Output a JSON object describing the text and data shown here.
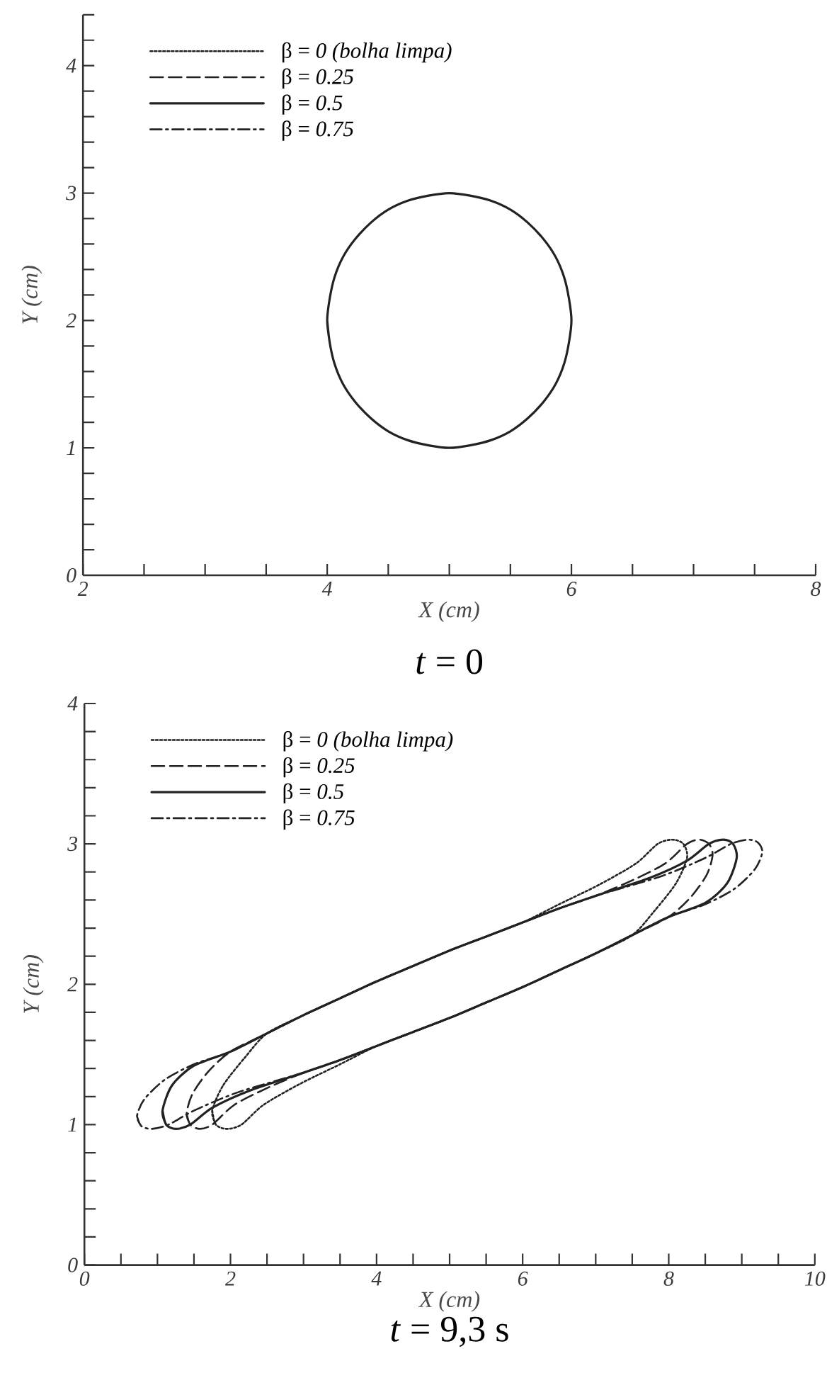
{
  "chart_data": [
    {
      "type": "line",
      "xlabel": "X (cm)",
      "ylabel": "Y (cm)",
      "annotations": [
        "*t* = 0"
      ],
      "legend": "top left",
      "xlim": [
        2,
        8
      ],
      "ylim": [
        0,
        4.4
      ],
      "xticks": [
        2,
        {
          "value": 2.5,
          "label": null
        },
        {
          "value": 3,
          "label": null
        },
        {
          "value": 3.5,
          "label": null
        },
        4,
        {
          "value": 4.5,
          "label": null
        },
        {
          "value": 5,
          "label": null
        },
        {
          "value": 5.5,
          "label": null
        },
        6,
        {
          "value": 6.5,
          "label": null
        },
        {
          "value": 7,
          "label": null
        },
        {
          "value": 7.5,
          "label": null
        },
        8
      ],
      "yticks": [
        0,
        {
          "value": 0.2,
          "label": null
        },
        {
          "value": 0.4,
          "label": null
        },
        {
          "value": 0.6,
          "label": null
        },
        {
          "value": 0.8,
          "label": null
        },
        1,
        {
          "value": 1.2,
          "label": null
        },
        {
          "value": 1.4,
          "label": null
        },
        {
          "value": 1.6,
          "label": null
        },
        {
          "value": 1.8,
          "label": null
        },
        2,
        {
          "value": 2.2,
          "label": null
        },
        {
          "value": 2.4,
          "label": null
        },
        {
          "value": 2.6,
          "label": null
        },
        {
          "value": 2.8,
          "label": null
        },
        3,
        {
          "value": 3.2,
          "label": null
        },
        {
          "value": 3.4,
          "label": null
        },
        {
          "value": 3.6,
          "label": null
        },
        {
          "value": 3.8,
          "label": null
        },
        4,
        {
          "value": 4.2,
          "label": null
        },
        {
          "value": 4.4,
          "label": null
        }
      ],
      "series": [
        {
          "name": "β = *0 (bolha limpa)*",
          "color": "#222222",
          "line_style": "dotted"
        },
        {
          "name": "β = *0.25*",
          "color": "#222222",
          "line_style": "dashed"
        },
        {
          "name": "β = *0.5*",
          "color": "#222222",
          "line_style": "solid",
          "x": [
            4,
            4.02,
            4.06,
            4.13,
            4.23,
            4.36,
            4.5,
            4.66,
            4.83,
            5,
            5.17,
            5.34,
            5.5,
            5.64,
            5.77,
            5.87,
            5.94,
            5.98,
            6,
            5.98,
            5.94,
            5.87,
            5.77,
            5.64,
            5.5,
            5.34,
            5.17,
            5,
            4.83,
            4.66,
            4.5,
            4.36,
            4.23,
            4.13,
            4.06,
            4.02,
            4,
            4.02
          ],
          "values": [
            2,
            1.83,
            1.66,
            1.5,
            1.36,
            1.23,
            1.13,
            1.06,
            1.02,
            1,
            1.02,
            1.06,
            1.13,
            1.23,
            1.36,
            1.5,
            1.66,
            1.83,
            2,
            2.17,
            2.34,
            2.5,
            2.64,
            2.77,
            2.87,
            2.94,
            2.98,
            3,
            2.98,
            2.94,
            2.87,
            2.77,
            2.64,
            2.5,
            2.34,
            2.17,
            2,
            1.83
          ]
        },
        {
          "name": "β = *0.75*",
          "color": "#222222",
          "line_style": "dashdot"
        }
      ]
    },
    {
      "type": "line",
      "xlabel": "X (cm)",
      "ylabel": "Y (cm)",
      "annotations": [
        "*t* = 9,3 s"
      ],
      "legend": "top left",
      "xlim": [
        0,
        10
      ],
      "ylim": [
        0,
        4
      ],
      "xticks": [
        0,
        {
          "value": 0.5,
          "label": null
        },
        {
          "value": 1,
          "label": null
        },
        {
          "value": 1.5,
          "label": null
        },
        2,
        {
          "value": 2.5,
          "label": null
        },
        {
          "value": 3,
          "label": null
        },
        {
          "value": 3.5,
          "label": null
        },
        4,
        {
          "value": 4.5,
          "label": null
        },
        {
          "value": 5,
          "label": null
        },
        {
          "value": 5.5,
          "label": null
        },
        6,
        {
          "value": 6.5,
          "label": null
        },
        {
          "value": 7,
          "label": null
        },
        {
          "value": 7.5,
          "label": null
        },
        8,
        {
          "value": 8.5,
          "label": null
        },
        {
          "value": 9,
          "label": null
        },
        {
          "value": 9.5,
          "label": null
        },
        10
      ],
      "yticks": [
        0,
        {
          "value": 0.2,
          "label": null
        },
        {
          "value": 0.4,
          "label": null
        },
        {
          "value": 0.6,
          "label": null
        },
        {
          "value": 0.8,
          "label": null
        },
        1,
        {
          "value": 1.2,
          "label": null
        },
        {
          "value": 1.4,
          "label": null
        },
        {
          "value": 1.6,
          "label": null
        },
        {
          "value": 1.8,
          "label": null
        },
        2,
        {
          "value": 2.2,
          "label": null
        },
        {
          "value": 2.4,
          "label": null
        },
        {
          "value": 2.6,
          "label": null
        },
        {
          "value": 2.8,
          "label": null
        },
        3,
        {
          "value": 3.2,
          "label": null
        },
        {
          "value": 3.4,
          "label": null
        },
        {
          "value": 3.6,
          "label": null
        },
        {
          "value": 3.8,
          "label": null
        },
        4
      ],
      "series": [
        {
          "name": "β = *0 (bolha limpa)*",
          "color": "#222222",
          "line_style": "dotted",
          "x": [
            1.75,
            1.8,
            1.95,
            2.15,
            2.45,
            2.95,
            3.5,
            4.0,
            4.5,
            5.0,
            5.5,
            6.0,
            6.5,
            7.0,
            7.5,
            7.8,
            8.1,
            8.25,
            8.2,
            8.05,
            7.85,
            7.55,
            7.05,
            6.5,
            6.0,
            5.5,
            5.0,
            4.5,
            4.0,
            3.5,
            3.0,
            2.5,
            2.2,
            1.9,
            1.75,
            1.8
          ],
          "values": [
            1.1,
            1.0,
            0.97,
            1.0,
            1.14,
            1.29,
            1.43,
            1.56,
            1.66,
            1.76,
            1.87,
            1.98,
            2.1,
            2.22,
            2.35,
            2.52,
            2.72,
            2.9,
            3.0,
            3.03,
            3.0,
            2.86,
            2.71,
            2.57,
            2.44,
            2.34,
            2.24,
            2.13,
            2.02,
            1.9,
            1.78,
            1.65,
            1.48,
            1.28,
            1.1,
            1.0
          ]
        },
        {
          "name": "β = *0.25*",
          "color": "#222222",
          "line_style": "dashed",
          "x": [
            1.4,
            1.45,
            1.58,
            1.75,
            2.05,
            2.5,
            3.0,
            3.5,
            4.0,
            4.5,
            5.0,
            5.5,
            6.0,
            6.5,
            7.0,
            7.5,
            8.0,
            8.3,
            8.52,
            8.6,
            8.55,
            8.42,
            8.25,
            7.95,
            7.5,
            7.0,
            6.5,
            6.0,
            5.5,
            5.0,
            4.5,
            4.0,
            3.5,
            3.0,
            2.5,
            2.0,
            1.7,
            1.48,
            1.4,
            1.45
          ],
          "values": [
            1.08,
            1.0,
            0.97,
            1.0,
            1.14,
            1.26,
            1.37,
            1.46,
            1.56,
            1.66,
            1.76,
            1.87,
            1.98,
            2.1,
            2.22,
            2.35,
            2.48,
            2.62,
            2.78,
            2.92,
            3.0,
            3.03,
            3.0,
            2.86,
            2.74,
            2.63,
            2.54,
            2.44,
            2.34,
            2.24,
            2.13,
            2.02,
            1.9,
            1.78,
            1.65,
            1.52,
            1.38,
            1.22,
            1.08,
            1.0
          ]
        },
        {
          "name": "β = *0.5*",
          "color": "#222222",
          "line_style": "solid",
          "x": [
            1.07,
            1.12,
            1.25,
            1.45,
            1.75,
            2.25,
            3.0,
            3.5,
            4.0,
            4.5,
            5.0,
            5.5,
            6.0,
            6.5,
            7.0,
            7.5,
            8.0,
            8.5,
            8.8,
            8.93,
            8.88,
            8.75,
            8.55,
            8.25,
            7.75,
            7.0,
            6.5,
            6.0,
            5.5,
            5.0,
            4.5,
            4.0,
            3.5,
            3.0,
            2.5,
            2.0,
            1.5,
            1.2,
            1.07,
            1.12
          ],
          "values": [
            1.1,
            1.0,
            0.97,
            1.0,
            1.12,
            1.24,
            1.37,
            1.46,
            1.56,
            1.66,
            1.76,
            1.87,
            1.98,
            2.1,
            2.22,
            2.35,
            2.48,
            2.58,
            2.72,
            2.9,
            3.0,
            3.03,
            3.0,
            2.88,
            2.76,
            2.63,
            2.54,
            2.44,
            2.34,
            2.24,
            2.13,
            2.02,
            1.9,
            1.78,
            1.65,
            1.52,
            1.42,
            1.28,
            1.1,
            1.0
          ]
        },
        {
          "name": "β = *0.75*",
          "color": "#222222",
          "line_style": "dashdot",
          "x": [
            0.72,
            0.78,
            0.92,
            1.15,
            1.5,
            2.1,
            3.0,
            3.5,
            4.0,
            4.5,
            5.0,
            5.5,
            6.0,
            6.5,
            7.0,
            7.5,
            8.0,
            8.5,
            8.9,
            9.18,
            9.28,
            9.22,
            9.08,
            8.85,
            8.5,
            7.9,
            7.0,
            6.5,
            6.0,
            5.5,
            5.0,
            4.5,
            4.0,
            3.5,
            3.0,
            2.5,
            2.0,
            1.5,
            1.1,
            0.82,
            0.72,
            0.78
          ],
          "values": [
            1.06,
            0.99,
            0.97,
            1.0,
            1.1,
            1.23,
            1.37,
            1.46,
            1.56,
            1.66,
            1.76,
            1.87,
            1.98,
            2.1,
            2.22,
            2.35,
            2.48,
            2.57,
            2.68,
            2.82,
            2.94,
            3.01,
            3.03,
            3.0,
            2.9,
            2.77,
            2.63,
            2.54,
            2.44,
            2.34,
            2.24,
            2.13,
            2.02,
            1.9,
            1.78,
            1.65,
            1.52,
            1.43,
            1.32,
            1.18,
            1.06,
            0.99
          ]
        }
      ]
    }
  ]
}
